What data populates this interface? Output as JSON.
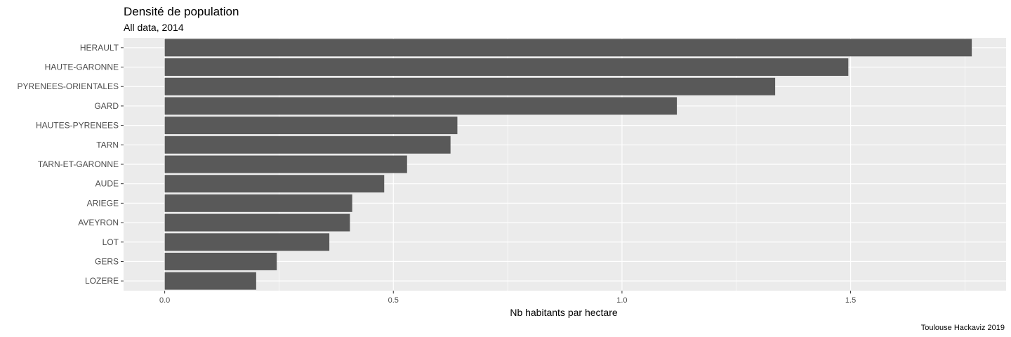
{
  "chart_data": {
    "type": "bar",
    "orientation": "horizontal",
    "title": "Densité de population",
    "subtitle": "All data, 2014",
    "xlabel": "Nb habitants par hectare",
    "ylabel": "",
    "caption": "Toulouse Hackaviz 2019",
    "xlim": [
      -0.09,
      1.84
    ],
    "x_ticks": [
      "0.0",
      "0.5",
      "1.0",
      "1.5"
    ],
    "x_tick_values": [
      0,
      0.5,
      1.0,
      1.5
    ],
    "grid": true,
    "bar_color": "#595959",
    "panel_color": "#ebebeb",
    "categories": [
      "HERAULT",
      "HAUTE-GARONNE",
      "PYRENEES-ORIENTALES",
      "GARD",
      "HAUTES-PYRENEES",
      "TARN",
      "TARN-ET-GARONNE",
      "AUDE",
      "ARIEGE",
      "AVEYRON",
      "LOT",
      "GERS",
      "LOZERE"
    ],
    "values": [
      1.765,
      1.495,
      1.335,
      1.12,
      0.64,
      0.625,
      0.53,
      0.48,
      0.41,
      0.405,
      0.36,
      0.245,
      0.2
    ]
  }
}
